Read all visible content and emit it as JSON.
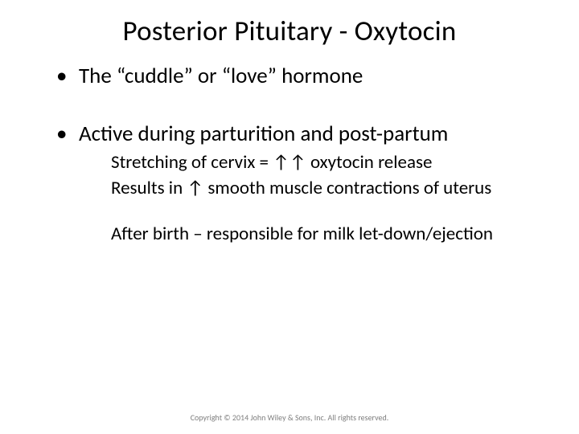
{
  "title": "Posterior Pituitary - Oxytocin",
  "bullets": [
    {
      "text": "The “cuddle” or “love” hormone",
      "sub": []
    },
    {
      "text": "Active during parturition and post-partum",
      "sub": [
        "Stretching of cervix = ↑↑ oxytocin release",
        "Results in ↑ smooth muscle contractions of uterus",
        "",
        "After birth – responsible for milk let-down/ejection"
      ]
    }
  ],
  "copyright": "Copyright © 2014 John Wiley & Sons, Inc. All rights reserved."
}
